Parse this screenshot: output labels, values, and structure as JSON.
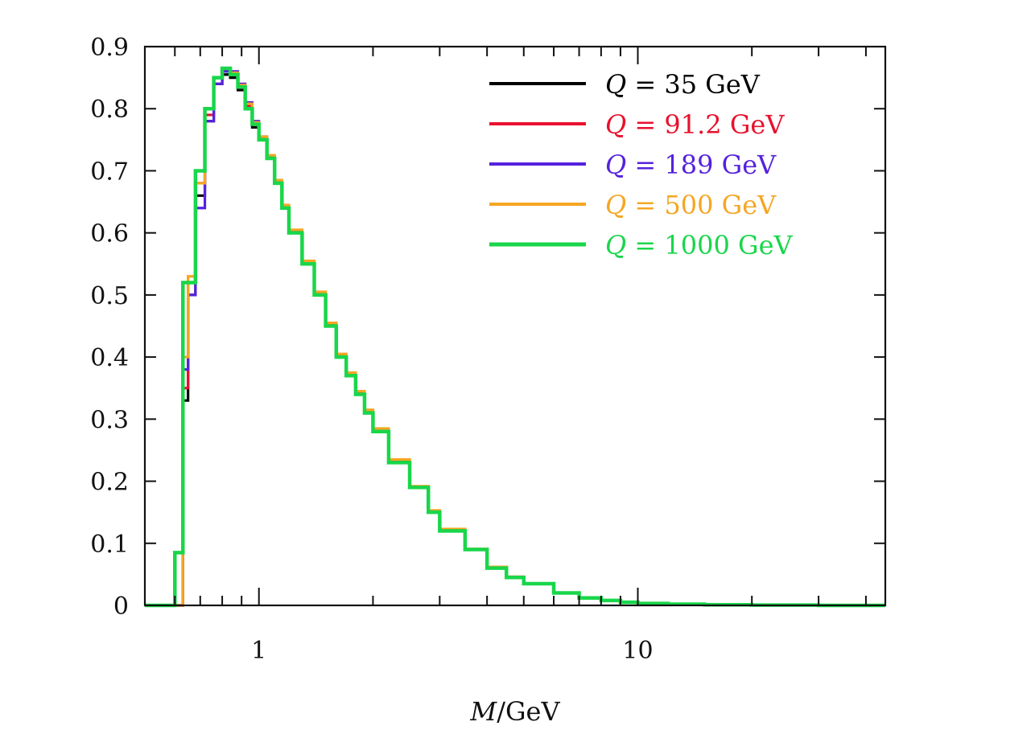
{
  "chart_data": {
    "type": "line",
    "style": "step-histogram",
    "xlabel": "M/GeV",
    "xlabel_var": "M",
    "xlabel_unit": "/GeV",
    "ylabel": "",
    "title": "",
    "x_scale": "log",
    "xlim": [
      0.5,
      45
    ],
    "ylim": [
      0,
      0.9
    ],
    "x_ticks": [
      1,
      10
    ],
    "x_tick_labels": [
      "1",
      "10"
    ],
    "y_ticks": [
      0,
      0.1,
      0.2,
      0.3,
      0.4,
      0.5,
      0.6,
      0.7,
      0.8,
      0.9
    ],
    "y_tick_labels": [
      "0",
      "0.1",
      "0.2",
      "0.3",
      "0.4",
      "0.5",
      "0.6",
      "0.7",
      "0.8",
      "0.9"
    ],
    "grid": false,
    "legend_position": "top-right",
    "x": [
      0.5,
      0.6,
      0.63,
      0.65,
      0.68,
      0.72,
      0.76,
      0.8,
      0.84,
      0.88,
      0.92,
      0.96,
      1.0,
      1.05,
      1.1,
      1.15,
      1.2,
      1.3,
      1.4,
      1.5,
      1.6,
      1.7,
      1.8,
      1.9,
      2.0,
      2.2,
      2.5,
      2.8,
      3.0,
      3.5,
      4.0,
      4.5,
      5.0,
      6.0,
      7.0,
      8.0,
      9.0,
      10.0,
      12.0,
      15.0,
      20.0,
      30.0,
      45.0
    ],
    "series": [
      {
        "name": "Q = 35 GeV",
        "label_var": "Q",
        "label_rest": " = 35 GeV",
        "color": "#000000",
        "values": [
          0.0,
          0.0,
          0.33,
          0.5,
          0.66,
          0.78,
          0.84,
          0.855,
          0.85,
          0.83,
          0.8,
          0.77,
          0.75,
          0.72,
          0.68,
          0.64,
          0.6,
          0.55,
          0.5,
          0.45,
          0.4,
          0.37,
          0.34,
          0.31,
          0.28,
          0.23,
          0.19,
          0.15,
          0.12,
          0.09,
          0.06,
          0.045,
          0.035,
          0.02,
          0.012,
          0.008,
          0.005,
          0.003,
          0.002,
          0.001,
          0.0005,
          0.0,
          0.0
        ]
      },
      {
        "name": "Q = 91.2 GeV",
        "label_var": "Q",
        "label_rest": " = 91.2 GeV",
        "color": "#e8112d",
        "values": [
          0.0,
          0.0,
          0.35,
          0.52,
          0.68,
          0.79,
          0.85,
          0.862,
          0.855,
          0.835,
          0.805,
          0.775,
          0.752,
          0.72,
          0.682,
          0.642,
          0.602,
          0.552,
          0.502,
          0.452,
          0.402,
          0.372,
          0.342,
          0.312,
          0.282,
          0.232,
          0.19,
          0.152,
          0.122,
          0.09,
          0.062,
          0.046,
          0.035,
          0.02,
          0.012,
          0.008,
          0.005,
          0.003,
          0.002,
          0.001,
          0.0005,
          0.0,
          0.0
        ]
      },
      {
        "name": "Q = 189 GeV",
        "label_var": "Q",
        "label_rest": " = 189 GeV",
        "color": "#5522dd",
        "values": [
          0.0,
          0.0,
          0.38,
          0.5,
          0.64,
          0.78,
          0.84,
          0.86,
          0.86,
          0.84,
          0.81,
          0.78,
          0.755,
          0.722,
          0.68,
          0.64,
          0.6,
          0.55,
          0.5,
          0.45,
          0.4,
          0.37,
          0.34,
          0.31,
          0.28,
          0.23,
          0.19,
          0.15,
          0.12,
          0.09,
          0.06,
          0.045,
          0.035,
          0.02,
          0.012,
          0.008,
          0.005,
          0.003,
          0.002,
          0.001,
          0.0005,
          0.0,
          0.0
        ]
      },
      {
        "name": "Q = 500 GeV",
        "label_var": "Q",
        "label_rest": " = 500 GeV",
        "color": "#f5a623",
        "values": [
          0.0,
          0.0,
          0.4,
          0.53,
          0.68,
          0.8,
          0.85,
          0.865,
          0.858,
          0.838,
          0.808,
          0.778,
          0.755,
          0.725,
          0.685,
          0.645,
          0.605,
          0.555,
          0.505,
          0.455,
          0.405,
          0.375,
          0.345,
          0.315,
          0.285,
          0.235,
          0.192,
          0.153,
          0.123,
          0.091,
          0.062,
          0.046,
          0.035,
          0.02,
          0.012,
          0.008,
          0.005,
          0.003,
          0.002,
          0.001,
          0.0005,
          0.0,
          0.0
        ]
      },
      {
        "name": "Q = 1000 GeV",
        "label_var": "Q",
        "label_rest": " = 1000 GeV",
        "color": "#19d64a",
        "values": [
          0.0,
          0.085,
          0.52,
          0.52,
          0.7,
          0.8,
          0.85,
          0.865,
          0.855,
          0.835,
          0.8,
          0.775,
          0.75,
          0.72,
          0.68,
          0.64,
          0.6,
          0.55,
          0.5,
          0.45,
          0.4,
          0.37,
          0.34,
          0.31,
          0.28,
          0.23,
          0.19,
          0.15,
          0.12,
          0.09,
          0.06,
          0.045,
          0.035,
          0.02,
          0.012,
          0.008,
          0.005,
          0.003,
          0.002,
          0.001,
          0.0005,
          0.0,
          0.0
        ]
      }
    ]
  }
}
